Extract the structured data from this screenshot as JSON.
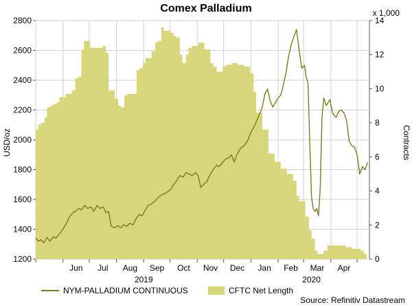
{
  "chart_data": {
    "type": "line",
    "title": "Comex Palladium",
    "ylabel_left": "USD/oz",
    "ylabel_right": "Contracts",
    "right_multiplier": "x 1,000",
    "ylim_left": [
      1200,
      2800
    ],
    "yticks_left": [
      1200,
      1400,
      1600,
      1800,
      2000,
      2200,
      2400,
      2600,
      2800
    ],
    "ylim_right": [
      0,
      14
    ],
    "yticks_right": [
      0,
      2,
      4,
      6,
      8,
      10,
      12,
      14
    ],
    "x_range": [
      "2019-05-01",
      "2020-05-15"
    ],
    "month_ticks": [
      {
        "date": "2019-05-01",
        "label": ""
      },
      {
        "date": "2019-06-01",
        "label": "Jun"
      },
      {
        "date": "2019-07-01",
        "label": "Jul"
      },
      {
        "date": "2019-08-01",
        "label": "Aug"
      },
      {
        "date": "2019-09-01",
        "label": "Sep"
      },
      {
        "date": "2019-10-01",
        "label": "Oct"
      },
      {
        "date": "2019-11-01",
        "label": "Nov"
      },
      {
        "date": "2019-12-01",
        "label": "Dec"
      },
      {
        "date": "2020-01-01",
        "label": "Jan"
      },
      {
        "date": "2020-02-01",
        "label": "Feb"
      },
      {
        "date": "2020-03-01",
        "label": "Mar"
      },
      {
        "date": "2020-04-01",
        "label": "Apr"
      },
      {
        "date": "2020-05-01",
        "label": ""
      }
    ],
    "year_labels": [
      {
        "date": "2019-09-01",
        "label": "2019"
      },
      {
        "date": "2020-03-10",
        "label": "2020"
      }
    ],
    "grid": true,
    "legend_position": "bottom",
    "source": "Source: Refinitiv Datastream",
    "series": [
      {
        "name": "CFTC Net Length",
        "type": "area",
        "axis": "right",
        "color": "#d8d67a",
        "points": [
          [
            "2019-05-01",
            7.6
          ],
          [
            "2019-05-04",
            7.9
          ],
          [
            "2019-05-07",
            8.0
          ],
          [
            "2019-05-11",
            8.3
          ],
          [
            "2019-05-14",
            8.9
          ],
          [
            "2019-05-18",
            9.0
          ],
          [
            "2019-05-21",
            9.1
          ],
          [
            "2019-05-25",
            9.2
          ],
          [
            "2019-05-28",
            9.5
          ],
          [
            "2019-06-04",
            9.7
          ],
          [
            "2019-06-11",
            9.9
          ],
          [
            "2019-06-15",
            10.6
          ],
          [
            "2019-06-18",
            10.7
          ],
          [
            "2019-06-22",
            12.3
          ],
          [
            "2019-06-25",
            12.8
          ],
          [
            "2019-07-02",
            12.4
          ],
          [
            "2019-07-09",
            12.4
          ],
          [
            "2019-07-16",
            12.5
          ],
          [
            "2019-07-20",
            12.1
          ],
          [
            "2019-07-23",
            9.9
          ],
          [
            "2019-07-30",
            9.4
          ],
          [
            "2019-08-03",
            9.0
          ],
          [
            "2019-08-06",
            8.9
          ],
          [
            "2019-08-10",
            9.6
          ],
          [
            "2019-08-13",
            9.7
          ],
          [
            "2019-08-20",
            9.7
          ],
          [
            "2019-08-24",
            11.1
          ],
          [
            "2019-08-27",
            11.2
          ],
          [
            "2019-08-31",
            11.5
          ],
          [
            "2019-09-03",
            11.8
          ],
          [
            "2019-09-10",
            12.2
          ],
          [
            "2019-09-14",
            12.7
          ],
          [
            "2019-09-17",
            12.8
          ],
          [
            "2019-09-21",
            13.6
          ],
          [
            "2019-09-24",
            13.4
          ],
          [
            "2019-10-01",
            13.3
          ],
          [
            "2019-10-05",
            13.1
          ],
          [
            "2019-10-08",
            13.0
          ],
          [
            "2019-10-12",
            12.0
          ],
          [
            "2019-10-15",
            11.5
          ],
          [
            "2019-10-19",
            12.0
          ],
          [
            "2019-10-22",
            12.4
          ],
          [
            "2019-10-26",
            12.5
          ],
          [
            "2019-11-02",
            12.7
          ],
          [
            "2019-11-09",
            12.3
          ],
          [
            "2019-11-16",
            11.5
          ],
          [
            "2019-11-19",
            11.3
          ],
          [
            "2019-11-23",
            11.0
          ],
          [
            "2019-11-30",
            11.3
          ],
          [
            "2019-12-03",
            11.4
          ],
          [
            "2019-12-10",
            11.5
          ],
          [
            "2019-12-17",
            11.4
          ],
          [
            "2019-12-24",
            11.3
          ],
          [
            "2019-12-31",
            10.9
          ],
          [
            "2020-01-04",
            9.8
          ],
          [
            "2020-01-07",
            8.6
          ],
          [
            "2020-01-14",
            7.6
          ],
          [
            "2020-01-21",
            6.2
          ],
          [
            "2020-01-28",
            5.7
          ],
          [
            "2020-02-04",
            5.3
          ],
          [
            "2020-02-11",
            5.0
          ],
          [
            "2020-02-18",
            4.6
          ],
          [
            "2020-02-22",
            3.7
          ],
          [
            "2020-02-25",
            3.4
          ],
          [
            "2020-03-03",
            2.5
          ],
          [
            "2020-03-07",
            1.7
          ],
          [
            "2020-03-10",
            1.2
          ],
          [
            "2020-03-14",
            0.5
          ],
          [
            "2020-03-17",
            0.3
          ],
          [
            "2020-03-24",
            0.5
          ],
          [
            "2020-03-28",
            0.8
          ],
          [
            "2020-04-04",
            0.8
          ],
          [
            "2020-04-11",
            0.8
          ],
          [
            "2020-04-18",
            0.7
          ],
          [
            "2020-04-25",
            0.6
          ],
          [
            "2020-05-05",
            0.5
          ],
          [
            "2020-05-09",
            0.3
          ],
          [
            "2020-05-12",
            0.3
          ]
        ]
      },
      {
        "name": "NYM-PALLADIUM CONTINUOUS",
        "type": "line",
        "axis": "left",
        "color": "#7d7a1e",
        "points": [
          [
            "2019-05-01",
            1340
          ],
          [
            "2019-05-04",
            1320
          ],
          [
            "2019-05-07",
            1330
          ],
          [
            "2019-05-10",
            1310
          ],
          [
            "2019-05-14",
            1345
          ],
          [
            "2019-05-17",
            1320
          ],
          [
            "2019-05-21",
            1350
          ],
          [
            "2019-05-24",
            1340
          ],
          [
            "2019-05-28",
            1370
          ],
          [
            "2019-06-01",
            1400
          ],
          [
            "2019-06-05",
            1440
          ],
          [
            "2019-06-08",
            1480
          ],
          [
            "2019-06-12",
            1510
          ],
          [
            "2019-06-15",
            1520
          ],
          [
            "2019-06-19",
            1540
          ],
          [
            "2019-06-22",
            1530
          ],
          [
            "2019-06-26",
            1560
          ],
          [
            "2019-06-29",
            1540
          ],
          [
            "2019-07-03",
            1550
          ],
          [
            "2019-07-06",
            1520
          ],
          [
            "2019-07-10",
            1560
          ],
          [
            "2019-07-13",
            1540
          ],
          [
            "2019-07-17",
            1550
          ],
          [
            "2019-07-20",
            1510
          ],
          [
            "2019-07-23",
            1520
          ],
          [
            "2019-07-26",
            1420
          ],
          [
            "2019-07-30",
            1410
          ],
          [
            "2019-08-02",
            1425
          ],
          [
            "2019-08-06",
            1410
          ],
          [
            "2019-08-09",
            1430
          ],
          [
            "2019-08-13",
            1420
          ],
          [
            "2019-08-16",
            1440
          ],
          [
            "2019-08-20",
            1430
          ],
          [
            "2019-08-23",
            1470
          ],
          [
            "2019-08-27",
            1500
          ],
          [
            "2019-08-30",
            1490
          ],
          [
            "2019-09-03",
            1530
          ],
          [
            "2019-09-06",
            1560
          ],
          [
            "2019-09-10",
            1570
          ],
          [
            "2019-09-14",
            1590
          ],
          [
            "2019-09-17",
            1610
          ],
          [
            "2019-09-21",
            1630
          ],
          [
            "2019-09-25",
            1640
          ],
          [
            "2019-09-28",
            1650
          ],
          [
            "2019-10-02",
            1670
          ],
          [
            "2019-10-05",
            1700
          ],
          [
            "2019-10-09",
            1730
          ],
          [
            "2019-10-12",
            1760
          ],
          [
            "2019-10-16",
            1750
          ],
          [
            "2019-10-19",
            1780
          ],
          [
            "2019-10-23",
            1770
          ],
          [
            "2019-10-26",
            1760
          ],
          [
            "2019-10-30",
            1780
          ],
          [
            "2019-11-02",
            1760
          ],
          [
            "2019-11-05",
            1680
          ],
          [
            "2019-11-08",
            1700
          ],
          [
            "2019-11-12",
            1720
          ],
          [
            "2019-11-15",
            1760
          ],
          [
            "2019-11-19",
            1800
          ],
          [
            "2019-11-23",
            1830
          ],
          [
            "2019-11-26",
            1820
          ],
          [
            "2019-11-30",
            1850
          ],
          [
            "2019-12-03",
            1870
          ],
          [
            "2019-12-07",
            1880
          ],
          [
            "2019-12-10",
            1900
          ],
          [
            "2019-12-13",
            1850
          ],
          [
            "2019-12-16",
            1900
          ],
          [
            "2019-12-20",
            1940
          ],
          [
            "2019-12-24",
            1960
          ],
          [
            "2019-12-28",
            1990
          ],
          [
            "2020-01-01",
            2050
          ],
          [
            "2020-01-04",
            2080
          ],
          [
            "2020-01-07",
            2120
          ],
          [
            "2020-01-10",
            2160
          ],
          [
            "2020-01-14",
            2220
          ],
          [
            "2020-01-17",
            2310
          ],
          [
            "2020-01-20",
            2340
          ],
          [
            "2020-01-23",
            2260
          ],
          [
            "2020-01-26",
            2220
          ],
          [
            "2020-01-29",
            2250
          ],
          [
            "2020-02-01",
            2280
          ],
          [
            "2020-02-04",
            2300
          ],
          [
            "2020-02-07",
            2370
          ],
          [
            "2020-02-10",
            2450
          ],
          [
            "2020-02-13",
            2560
          ],
          [
            "2020-02-16",
            2640
          ],
          [
            "2020-02-19",
            2690
          ],
          [
            "2020-02-22",
            2740
          ],
          [
            "2020-02-25",
            2600
          ],
          [
            "2020-02-28",
            2480
          ],
          [
            "2020-03-02",
            2500
          ],
          [
            "2020-03-04",
            2420
          ],
          [
            "2020-03-06",
            2380
          ],
          [
            "2020-03-08",
            2000
          ],
          [
            "2020-03-10",
            1620
          ],
          [
            "2020-03-12",
            1540
          ],
          [
            "2020-03-14",
            1520
          ],
          [
            "2020-03-16",
            1540
          ],
          [
            "2020-03-18",
            1490
          ],
          [
            "2020-03-20",
            1680
          ],
          [
            "2020-03-22",
            2150
          ],
          [
            "2020-03-24",
            2280
          ],
          [
            "2020-03-27",
            2230
          ],
          [
            "2020-03-31",
            2270
          ],
          [
            "2020-04-03",
            2180
          ],
          [
            "2020-04-07",
            2150
          ],
          [
            "2020-04-10",
            2190
          ],
          [
            "2020-04-13",
            2200
          ],
          [
            "2020-04-16",
            2180
          ],
          [
            "2020-04-19",
            2130
          ],
          [
            "2020-04-22",
            1990
          ],
          [
            "2020-04-25",
            1960
          ],
          [
            "2020-04-28",
            1950
          ],
          [
            "2020-05-01",
            1900
          ],
          [
            "2020-05-04",
            1770
          ],
          [
            "2020-05-07",
            1820
          ],
          [
            "2020-05-10",
            1800
          ],
          [
            "2020-05-13",
            1850
          ]
        ]
      }
    ]
  }
}
